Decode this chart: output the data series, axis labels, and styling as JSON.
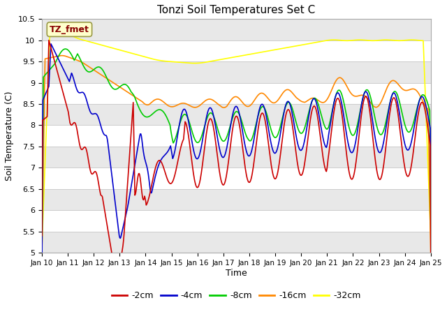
{
  "title": "Tonzi Soil Temperatures Set C",
  "xlabel": "Time",
  "ylabel": "Soil Temperature (C)",
  "ylim": [
    5.0,
    10.5
  ],
  "colors": {
    "-2cm": "#cc0000",
    "-4cm": "#0000cc",
    "-8cm": "#00cc00",
    "-16cm": "#ff8800",
    "-32cm": "#ffff00"
  },
  "legend_labels": [
    "-2cm",
    "-4cm",
    "-8cm",
    "-16cm",
    "-32cm"
  ],
  "xtick_labels": [
    "Jan 10",
    "Jan 11",
    "Jan 12",
    "Jan 13",
    "Jan 14",
    "Jan 15",
    "Jan 16",
    "Jan 17",
    "Jan 18",
    "Jan 19",
    "Jan 20",
    "Jan 21",
    "Jan 22",
    "Jan 23",
    "Jan 24",
    "Jan 25"
  ],
  "ytick_values": [
    5.0,
    5.5,
    6.0,
    6.5,
    7.0,
    7.5,
    8.0,
    8.5,
    9.0,
    9.5,
    10.0,
    10.5
  ],
  "annotation_text": "TZ_fmet",
  "annotation_bg": "#ffffcc",
  "annotation_border": "#999944",
  "bg_color": "#ffffff",
  "linewidth": 1.2
}
